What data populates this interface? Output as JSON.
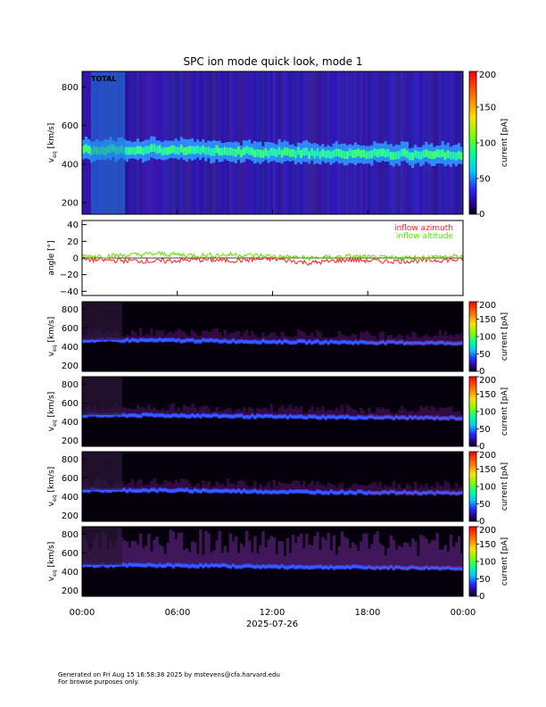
{
  "title": "SPC ion mode quick look, mode 1",
  "date_label": "2025-07-26",
  "footer": {
    "line1": "Generated on Fri Aug 15 16:58:38 2025 by mstevens@cfa.harvard.edu",
    "line2": "For browse purposes only."
  },
  "colors": {
    "azimuth": "#ff2020",
    "altitude": "#66dd00"
  },
  "chart_data": [
    {
      "type": "heatmap",
      "panel_label": "TOTAL",
      "ylabel_main": "v",
      "ylabel_sub": "eq",
      "ylabel_unit": "[km/s]",
      "ylim": [
        140,
        880
      ],
      "yticks": [
        "200",
        "400",
        "600",
        "800"
      ],
      "colorbar_label": "current [pA]",
      "colorbar_range": [
        0,
        200
      ],
      "colorbar_ticks": [
        "0",
        "50",
        "100",
        "150",
        "200"
      ],
      "core_speed_kms": [
        470,
        470,
        465,
        455,
        450,
        445,
        440
      ]
    },
    {
      "type": "line",
      "ylabel": "angle [°]",
      "ylim": [
        -45,
        45
      ],
      "yticks": [
        "−40",
        "−20",
        "0",
        "20",
        "40"
      ],
      "series": [
        {
          "name": "inflow azimuth",
          "values": [
            -2,
            -3,
            -4,
            -2,
            -3,
            -1,
            -6,
            -2,
            -4,
            -3,
            -2
          ]
        },
        {
          "name": "inflow altitude",
          "values": [
            2,
            3,
            5,
            3,
            4,
            2,
            0,
            2,
            0,
            1,
            2
          ]
        }
      ]
    },
    {
      "type": "heatmap",
      "panel_label": "A sensor",
      "ylabel_main": "v",
      "ylabel_sub": "eq",
      "ylabel_unit": "[km/s]",
      "ylim": [
        140,
        880
      ],
      "yticks": [
        "200",
        "400",
        "600",
        "800"
      ],
      "colorbar_label": "current [pA]",
      "colorbar_range": [
        0,
        200
      ],
      "colorbar_ticks": [
        "0",
        "50",
        "100",
        "150",
        "200"
      ]
    },
    {
      "type": "heatmap",
      "panel_label": "B sensor",
      "ylabel_main": "v",
      "ylabel_sub": "eq",
      "ylabel_unit": "[km/s]",
      "ylim": [
        140,
        880
      ],
      "yticks": [
        "200",
        "400",
        "600",
        "800"
      ],
      "colorbar_label": "current [pA]",
      "colorbar_range": [
        0,
        200
      ],
      "colorbar_ticks": [
        "0",
        "50",
        "100",
        "150",
        "200"
      ]
    },
    {
      "type": "heatmap",
      "panel_label": "C sensor",
      "ylabel_main": "v",
      "ylabel_sub": "eq",
      "ylabel_unit": "[km/s]",
      "ylim": [
        140,
        880
      ],
      "yticks": [
        "200",
        "400",
        "600",
        "800"
      ],
      "colorbar_label": "current [pA]",
      "colorbar_range": [
        0,
        200
      ],
      "colorbar_ticks": [
        "0",
        "50",
        "100",
        "150",
        "200"
      ]
    },
    {
      "type": "heatmap",
      "panel_label": "D sensor",
      "ylabel_main": "v",
      "ylabel_sub": "eq",
      "ylabel_unit": "[km/s]",
      "ylim": [
        140,
        880
      ],
      "yticks": [
        "200",
        "400",
        "600",
        "800"
      ],
      "colorbar_label": "current [pA]",
      "colorbar_range": [
        0,
        200
      ],
      "colorbar_ticks": [
        "0",
        "50",
        "100",
        "150",
        "200"
      ]
    }
  ],
  "xaxis": {
    "ticks": [
      "00:00",
      "06:00",
      "12:00",
      "18:00",
      "00:00"
    ]
  }
}
